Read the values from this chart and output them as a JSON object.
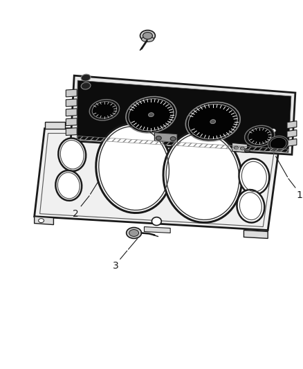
{
  "background_color": "#ffffff",
  "line_color": "#1a1a1a",
  "label_1": "1",
  "label_2": "2",
  "label_3": "3",
  "fig_width": 4.38,
  "fig_height": 5.33,
  "dpi": 100
}
